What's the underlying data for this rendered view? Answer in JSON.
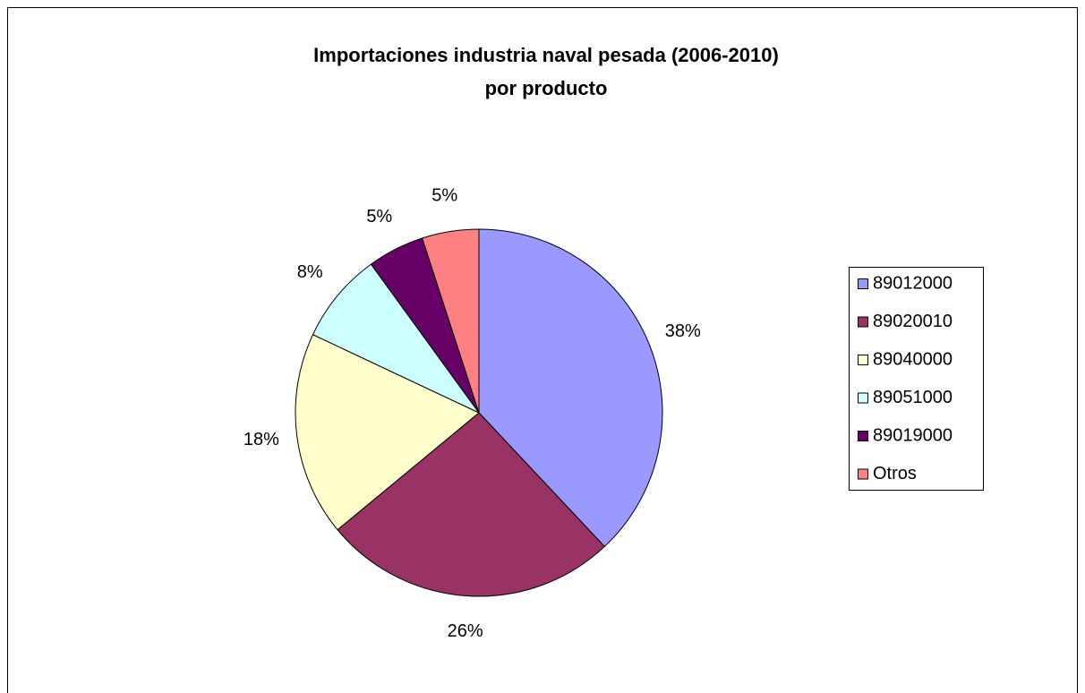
{
  "chart_data": {
    "type": "pie",
    "title": [
      "Importaciones industria naval pesada (2006-2010)",
      "por producto"
    ],
    "categories": [
      "89012000",
      "89020010",
      "89040000",
      "89051000",
      "89019000",
      "Otros"
    ],
    "values": [
      38,
      26,
      18,
      8,
      5,
      5
    ],
    "value_labels": [
      "38%",
      "26%",
      "18%",
      "8%",
      "5%",
      "5%"
    ],
    "colors": [
      "#9999ff",
      "#993366",
      "#ffffcc",
      "#ccffff",
      "#660066",
      "#ff8080"
    ],
    "legend": "right"
  }
}
